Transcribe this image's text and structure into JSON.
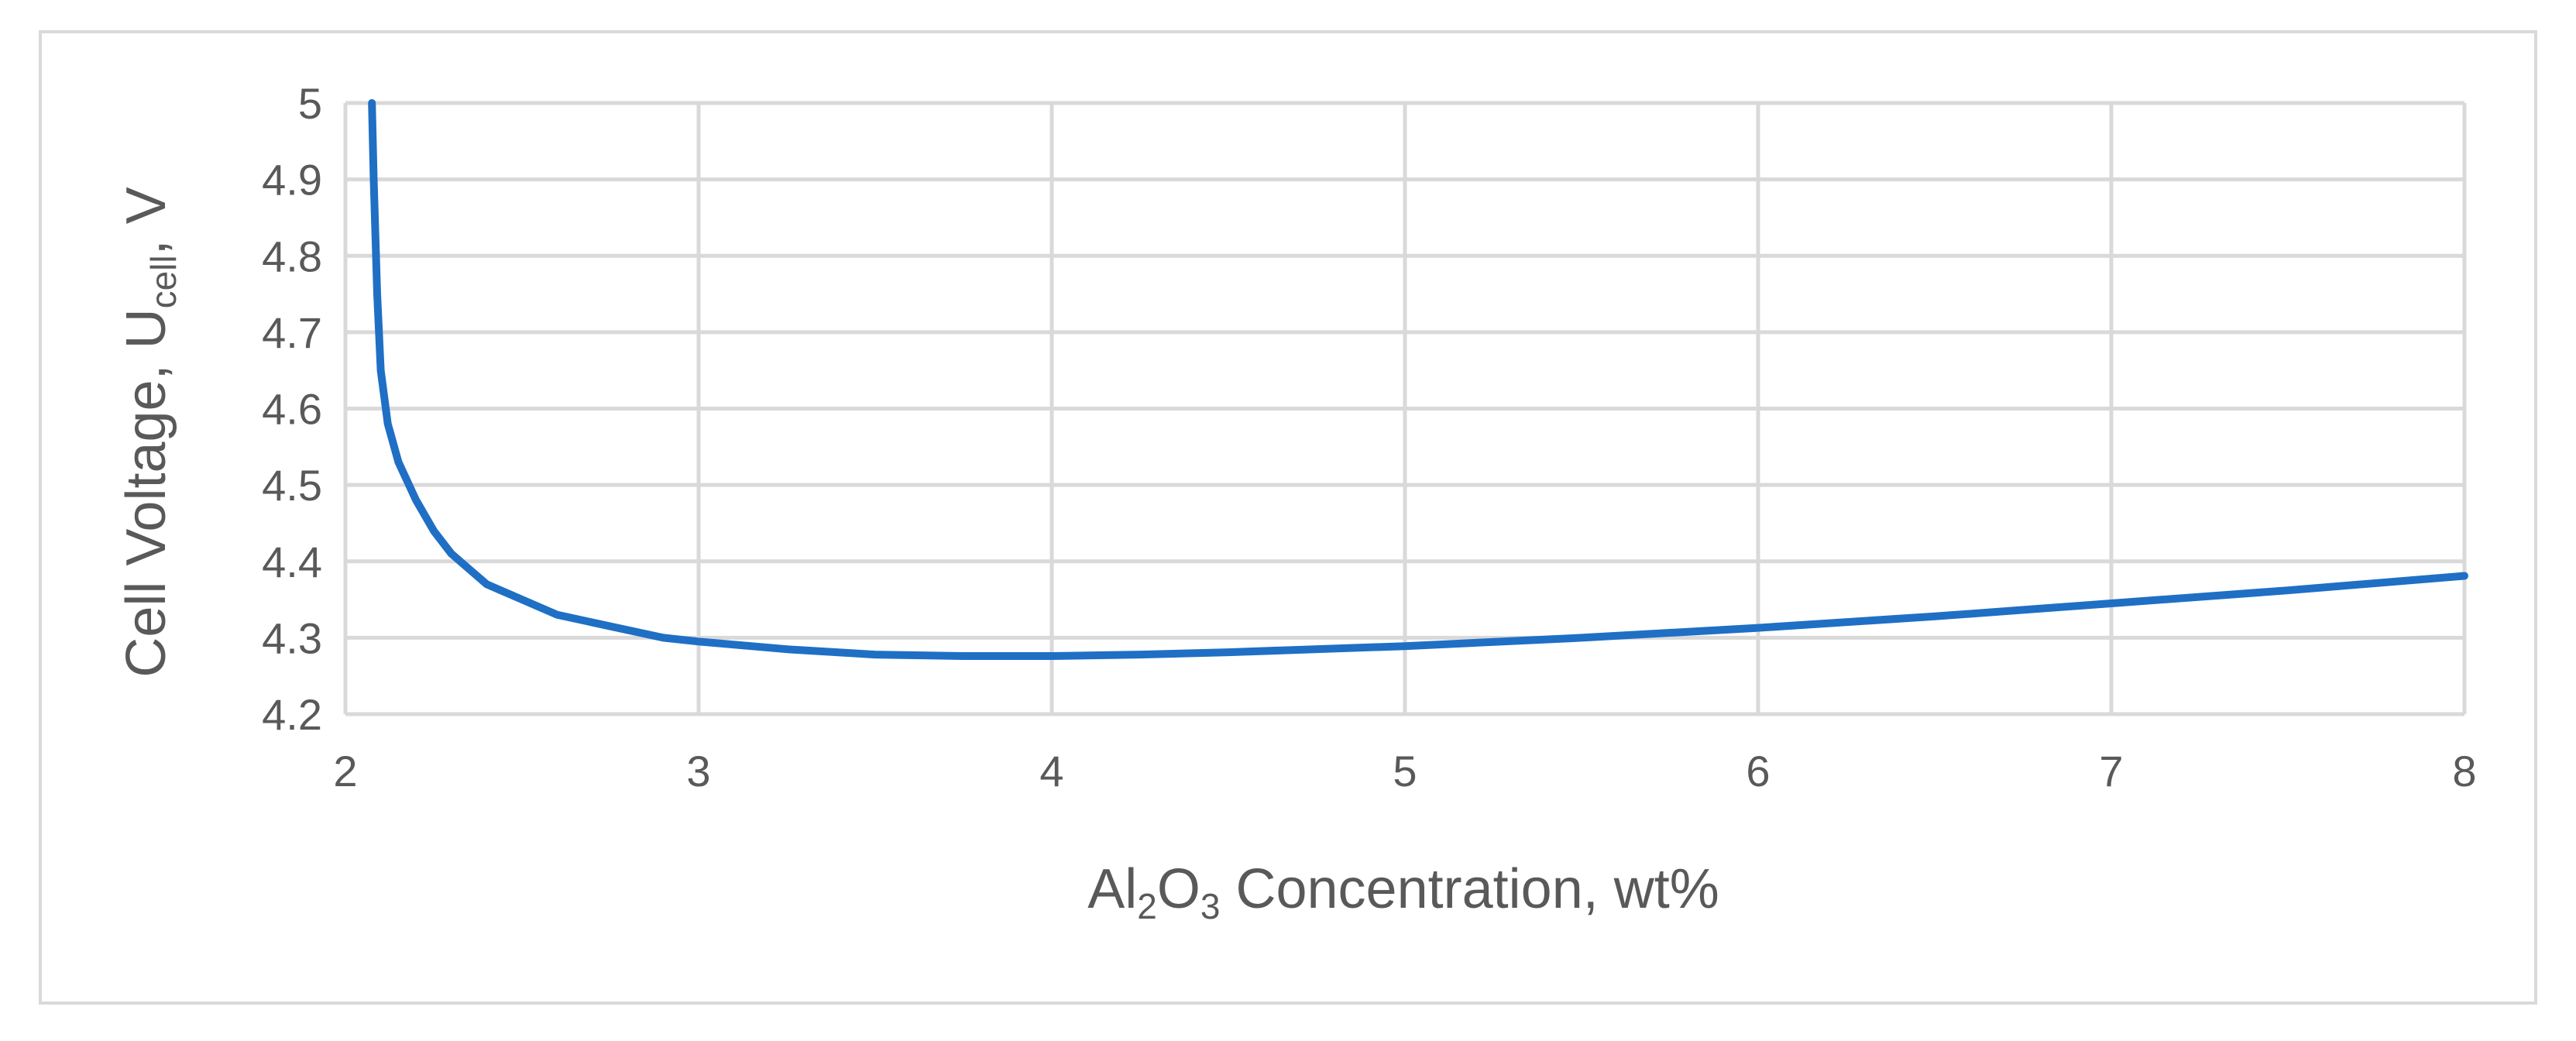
{
  "chart_data": {
    "type": "line",
    "title": "",
    "xlabel": {
      "pre": "Al",
      "sub1": "2",
      "mid": "O",
      "sub2": "3",
      "post": " Concentration, wt%"
    },
    "ylabel": {
      "pre": "Cell Voltage, U",
      "sub": "cell",
      "post": ", V"
    },
    "xlim": [
      2,
      8
    ],
    "ylim": [
      4.2,
      5
    ],
    "xticks": [
      "2",
      "3",
      "4",
      "5",
      "6",
      "7",
      "8"
    ],
    "yticks": [
      "4.2",
      "4.3",
      "4.4",
      "4.5",
      "4.6",
      "4.7",
      "4.8",
      "4.9",
      "5"
    ],
    "grid": true,
    "legend": "none",
    "series": [
      {
        "color": "#1f6fc5",
        "x": [
          2.075,
          2.08,
          2.09,
          2.1,
          2.12,
          2.15,
          2.2,
          2.25,
          2.3,
          2.35,
          2.4,
          2.5,
          2.6,
          2.75,
          2.9,
          3.0,
          3.25,
          3.5,
          3.75,
          4.0,
          4.25,
          4.5,
          5.0,
          5.5,
          6.0,
          6.5,
          7.0,
          7.5,
          8.0
        ],
        "y": [
          5.0,
          4.9,
          4.75,
          4.65,
          4.58,
          4.53,
          4.48,
          4.44,
          4.41,
          4.39,
          4.37,
          4.35,
          4.33,
          4.315,
          4.3,
          4.295,
          4.285,
          4.278,
          4.276,
          4.276,
          4.278,
          4.281,
          4.289,
          4.3,
          4.313,
          4.328,
          4.345,
          4.362,
          4.381
        ]
      }
    ]
  }
}
